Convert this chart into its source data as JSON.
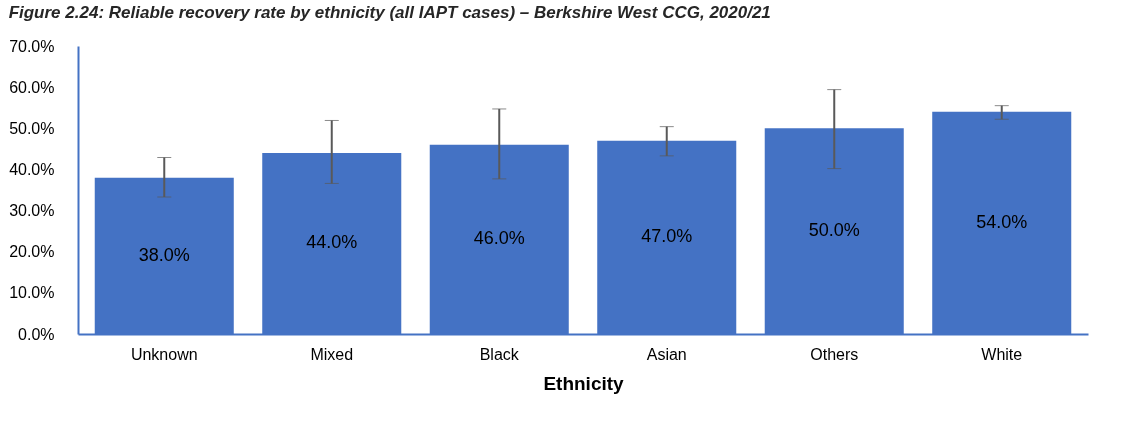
{
  "chart_data": {
    "type": "bar",
    "title": "Figure 2.24: Reliable recovery rate by ethnicity (all IAPT cases) – Berkshire West CCG, 2020/21",
    "xlabel": "Ethnicity",
    "categories": [
      "Unknown",
      "Mixed",
      "Black",
      "Asian",
      "Others",
      "White"
    ],
    "values": [
      38.0,
      44.0,
      46.0,
      47.0,
      50.0,
      54.0
    ],
    "value_labels": [
      "38.0%",
      "44.0%",
      "46.0%",
      "47.0%",
      "50.0%",
      "54.0%"
    ],
    "errors": [
      [
        33.3,
        42.9
      ],
      [
        36.6,
        51.9
      ],
      [
        37.7,
        54.7
      ],
      [
        43.3,
        50.4
      ],
      [
        40.2,
        59.4
      ],
      [
        52.2,
        55.5
      ]
    ],
    "color": "#4472c4",
    "ylim": [
      0,
      70
    ],
    "yticks": [
      {
        "value": 0,
        "label": "0.0%"
      },
      {
        "value": 10,
        "label": "10.0%"
      },
      {
        "value": 20,
        "label": "20.0%"
      },
      {
        "value": 30,
        "label": "30.0%"
      },
      {
        "value": 40,
        "label": "40.0%"
      },
      {
        "value": 50,
        "label": "50.0%"
      },
      {
        "value": 60,
        "label": "60.0%"
      },
      {
        "value": 70,
        "label": "70.0%"
      }
    ],
    "grid": false
  }
}
